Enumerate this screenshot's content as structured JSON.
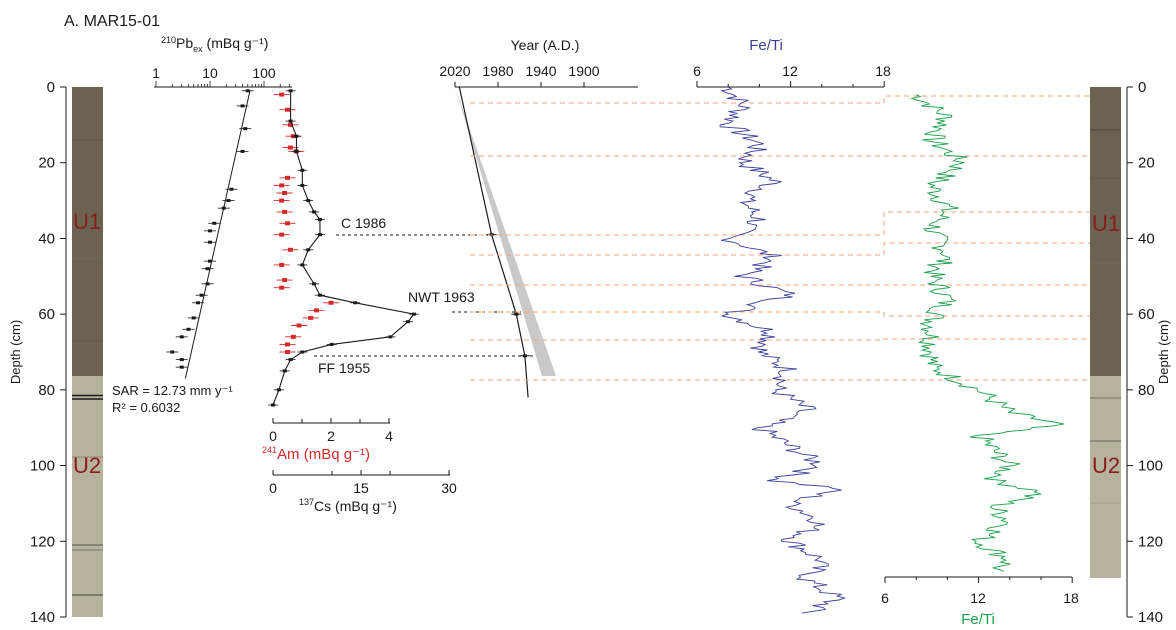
{
  "panel_title": "A. MAR15-01",
  "colors": {
    "black": "#1a1a1a",
    "red": "#d42a2a",
    "blue": "#3b3f97",
    "green": "#1e9e4a",
    "unit_dark": "#6b6350",
    "unit_light": "#b7b29c",
    "envelope": "#c9c9c9",
    "dash_orange": "#f2a37f",
    "unit_label": "#8a1c1c"
  },
  "depth_axis": {
    "label": "Depth (cm)",
    "ticks": [
      "0",
      "20",
      "40",
      "60",
      "80",
      "100",
      "120",
      "140"
    ]
  },
  "units": {
    "u1": "U1",
    "u2": "U2"
  },
  "pb_axis": {
    "label_sup": "210",
    "label_main": "Pb",
    "label_sub": "ex",
    "label_unit": " (mBq g⁻¹)",
    "ticks": [
      "1",
      "10",
      "100"
    ],
    "scale": "log"
  },
  "am_axis": {
    "label_sup": "241",
    "label_main": "Am (mBq g⁻¹)",
    "ticks": [
      "0",
      "2",
      "4"
    ]
  },
  "cs_axis": {
    "label_sup": "137",
    "label_main": "Cs (mBq g⁻¹)",
    "ticks": [
      "0",
      "15",
      "30"
    ]
  },
  "year_axis": {
    "label": "Year (A.D.)",
    "ticks": [
      "2020",
      "1980",
      "1940",
      "1900"
    ]
  },
  "fe_ti_top": {
    "label": "Fe/Ti",
    "ticks": [
      "6",
      "12",
      "18"
    ]
  },
  "fe_ti_bottom": {
    "label": "Fe/Ti",
    "ticks": [
      "6",
      "12",
      "18"
    ]
  },
  "annotations": {
    "sar": "SAR = 12.73 mm y⁻¹",
    "r2": "R² = 0.6032",
    "c1986": "C 1986",
    "nwt1963": "NWT 1963",
    "ff1955": "FF 1955"
  },
  "chart_data": [
    {
      "type": "scatter",
      "name": "210Pb_ex",
      "x_unit": "mBq g-1",
      "xlim": [
        1,
        1000
      ],
      "xscale": "log",
      "ylim": [
        0,
        140
      ],
      "points": [
        [
          50,
          1
        ],
        [
          40,
          5
        ],
        [
          45,
          11
        ],
        [
          40,
          17
        ],
        [
          25,
          27
        ],
        [
          22,
          30
        ],
        [
          18,
          32
        ],
        [
          12,
          36
        ],
        [
          10,
          38
        ],
        [
          10,
          41
        ],
        [
          10,
          46
        ],
        [
          9,
          48
        ],
        [
          9,
          52
        ],
        [
          7,
          55
        ],
        [
          6,
          57
        ],
        [
          5,
          61
        ],
        [
          4,
          64
        ],
        [
          3,
          66
        ],
        [
          2,
          70
        ],
        [
          3,
          72
        ],
        [
          3,
          74
        ]
      ],
      "fit_line": {
        "depth": [
          1,
          77
        ],
        "x": [
          55,
          3.5
        ]
      }
    },
    {
      "type": "scatter",
      "name": "241Am",
      "x_unit": "mBq g-1",
      "xlim": [
        0,
        4
      ],
      "ylim": [
        0,
        140
      ],
      "points": [
        [
          0.3,
          2
        ],
        [
          0.5,
          6
        ],
        [
          0.6,
          10
        ],
        [
          0.7,
          13
        ],
        [
          0.6,
          16
        ],
        [
          0.8,
          17
        ],
        [
          0.5,
          24
        ],
        [
          0.3,
          26
        ],
        [
          0.4,
          28
        ],
        [
          0.3,
          30
        ],
        [
          0.4,
          33
        ],
        [
          0.5,
          36
        ],
        [
          0.3,
          39
        ],
        [
          0.6,
          43
        ],
        [
          0.3,
          47
        ],
        [
          0.4,
          51
        ],
        [
          0.3,
          53
        ],
        [
          2.0,
          57
        ],
        [
          1.5,
          59
        ],
        [
          1.3,
          61
        ],
        [
          0.9,
          63
        ],
        [
          0.7,
          66
        ],
        [
          0.5,
          68
        ],
        [
          0.5,
          70
        ]
      ]
    },
    {
      "type": "line",
      "name": "137Cs",
      "x_unit": "mBq g-1",
      "xlim": [
        0,
        30
      ],
      "ylim": [
        0,
        140
      ],
      "points": [
        [
          3,
          1
        ],
        [
          3,
          9
        ],
        [
          4,
          13
        ],
        [
          4,
          17
        ],
        [
          5,
          22
        ],
        [
          5,
          26
        ],
        [
          6,
          30
        ],
        [
          7,
          33
        ],
        [
          8,
          35
        ],
        [
          8,
          39
        ],
        [
          6,
          43
        ],
        [
          5,
          47
        ],
        [
          7,
          52
        ],
        [
          8,
          55
        ],
        [
          14,
          57
        ],
        [
          24,
          60
        ],
        [
          23,
          62
        ],
        [
          20,
          66
        ],
        [
          10,
          68
        ],
        [
          5,
          70
        ],
        [
          3,
          72
        ],
        [
          2,
          75
        ],
        [
          1,
          80
        ],
        [
          0,
          84
        ]
      ]
    },
    {
      "type": "line",
      "name": "Age model",
      "x_label": "Year (A.D.)",
      "xlim": [
        2020,
        1880
      ],
      "ylim": [
        0,
        140
      ],
      "points": [
        [
          2016,
          0
        ],
        [
          1986,
          39
        ],
        [
          1963,
          60
        ],
        [
          1955,
          71
        ],
        [
          1952,
          82
        ]
      ],
      "markers": [
        {
          "year": 1986,
          "depth": 39
        },
        {
          "year": 1963,
          "depth": 60
        },
        {
          "year": 1955,
          "depth": 71
        }
      ]
    },
    {
      "type": "line",
      "name": "Fe/Ti (blue)",
      "xlim": [
        6,
        18
      ],
      "ylim": [
        0,
        140
      ],
      "points": [
        [
          8,
          0
        ],
        [
          9,
          5
        ],
        [
          8,
          10
        ],
        [
          10,
          15
        ],
        [
          9,
          20
        ],
        [
          11,
          25
        ],
        [
          9,
          30
        ],
        [
          10,
          35
        ],
        [
          8,
          40
        ],
        [
          11,
          45
        ],
        [
          9,
          50
        ],
        [
          12,
          55
        ],
        [
          8,
          60
        ],
        [
          11,
          65
        ],
        [
          10,
          70
        ],
        [
          12,
          75
        ],
        [
          11,
          80
        ],
        [
          13,
          85
        ],
        [
          10,
          90
        ],
        [
          12,
          95
        ],
        [
          14,
          100
        ],
        [
          11,
          104
        ],
        [
          15,
          106
        ],
        [
          12,
          110
        ],
        [
          14,
          115
        ],
        [
          12,
          120
        ],
        [
          14,
          125
        ],
        [
          13,
          130
        ],
        [
          15,
          135
        ],
        [
          13,
          139
        ]
      ]
    },
    {
      "type": "line",
      "name": "Fe/Ti (green)",
      "xlim": [
        6,
        18
      ],
      "ylim": [
        0,
        130
      ],
      "points": [
        [
          8,
          2
        ],
        [
          10,
          8
        ],
        [
          9,
          14
        ],
        [
          11,
          20
        ],
        [
          9,
          26
        ],
        [
          10,
          32
        ],
        [
          9,
          38
        ],
        [
          10,
          44
        ],
        [
          9,
          50
        ],
        [
          10,
          56
        ],
        [
          9,
          62
        ],
        [
          9,
          68
        ],
        [
          9,
          74
        ],
        [
          12,
          80
        ],
        [
          14,
          86
        ],
        [
          17,
          89
        ],
        [
          12,
          92
        ],
        [
          13,
          96
        ],
        [
          14,
          100
        ],
        [
          13,
          104
        ],
        [
          16,
          107
        ],
        [
          13,
          111
        ],
        [
          14,
          115
        ],
        [
          12,
          120
        ],
        [
          14,
          125
        ],
        [
          13,
          128
        ]
      ]
    }
  ]
}
